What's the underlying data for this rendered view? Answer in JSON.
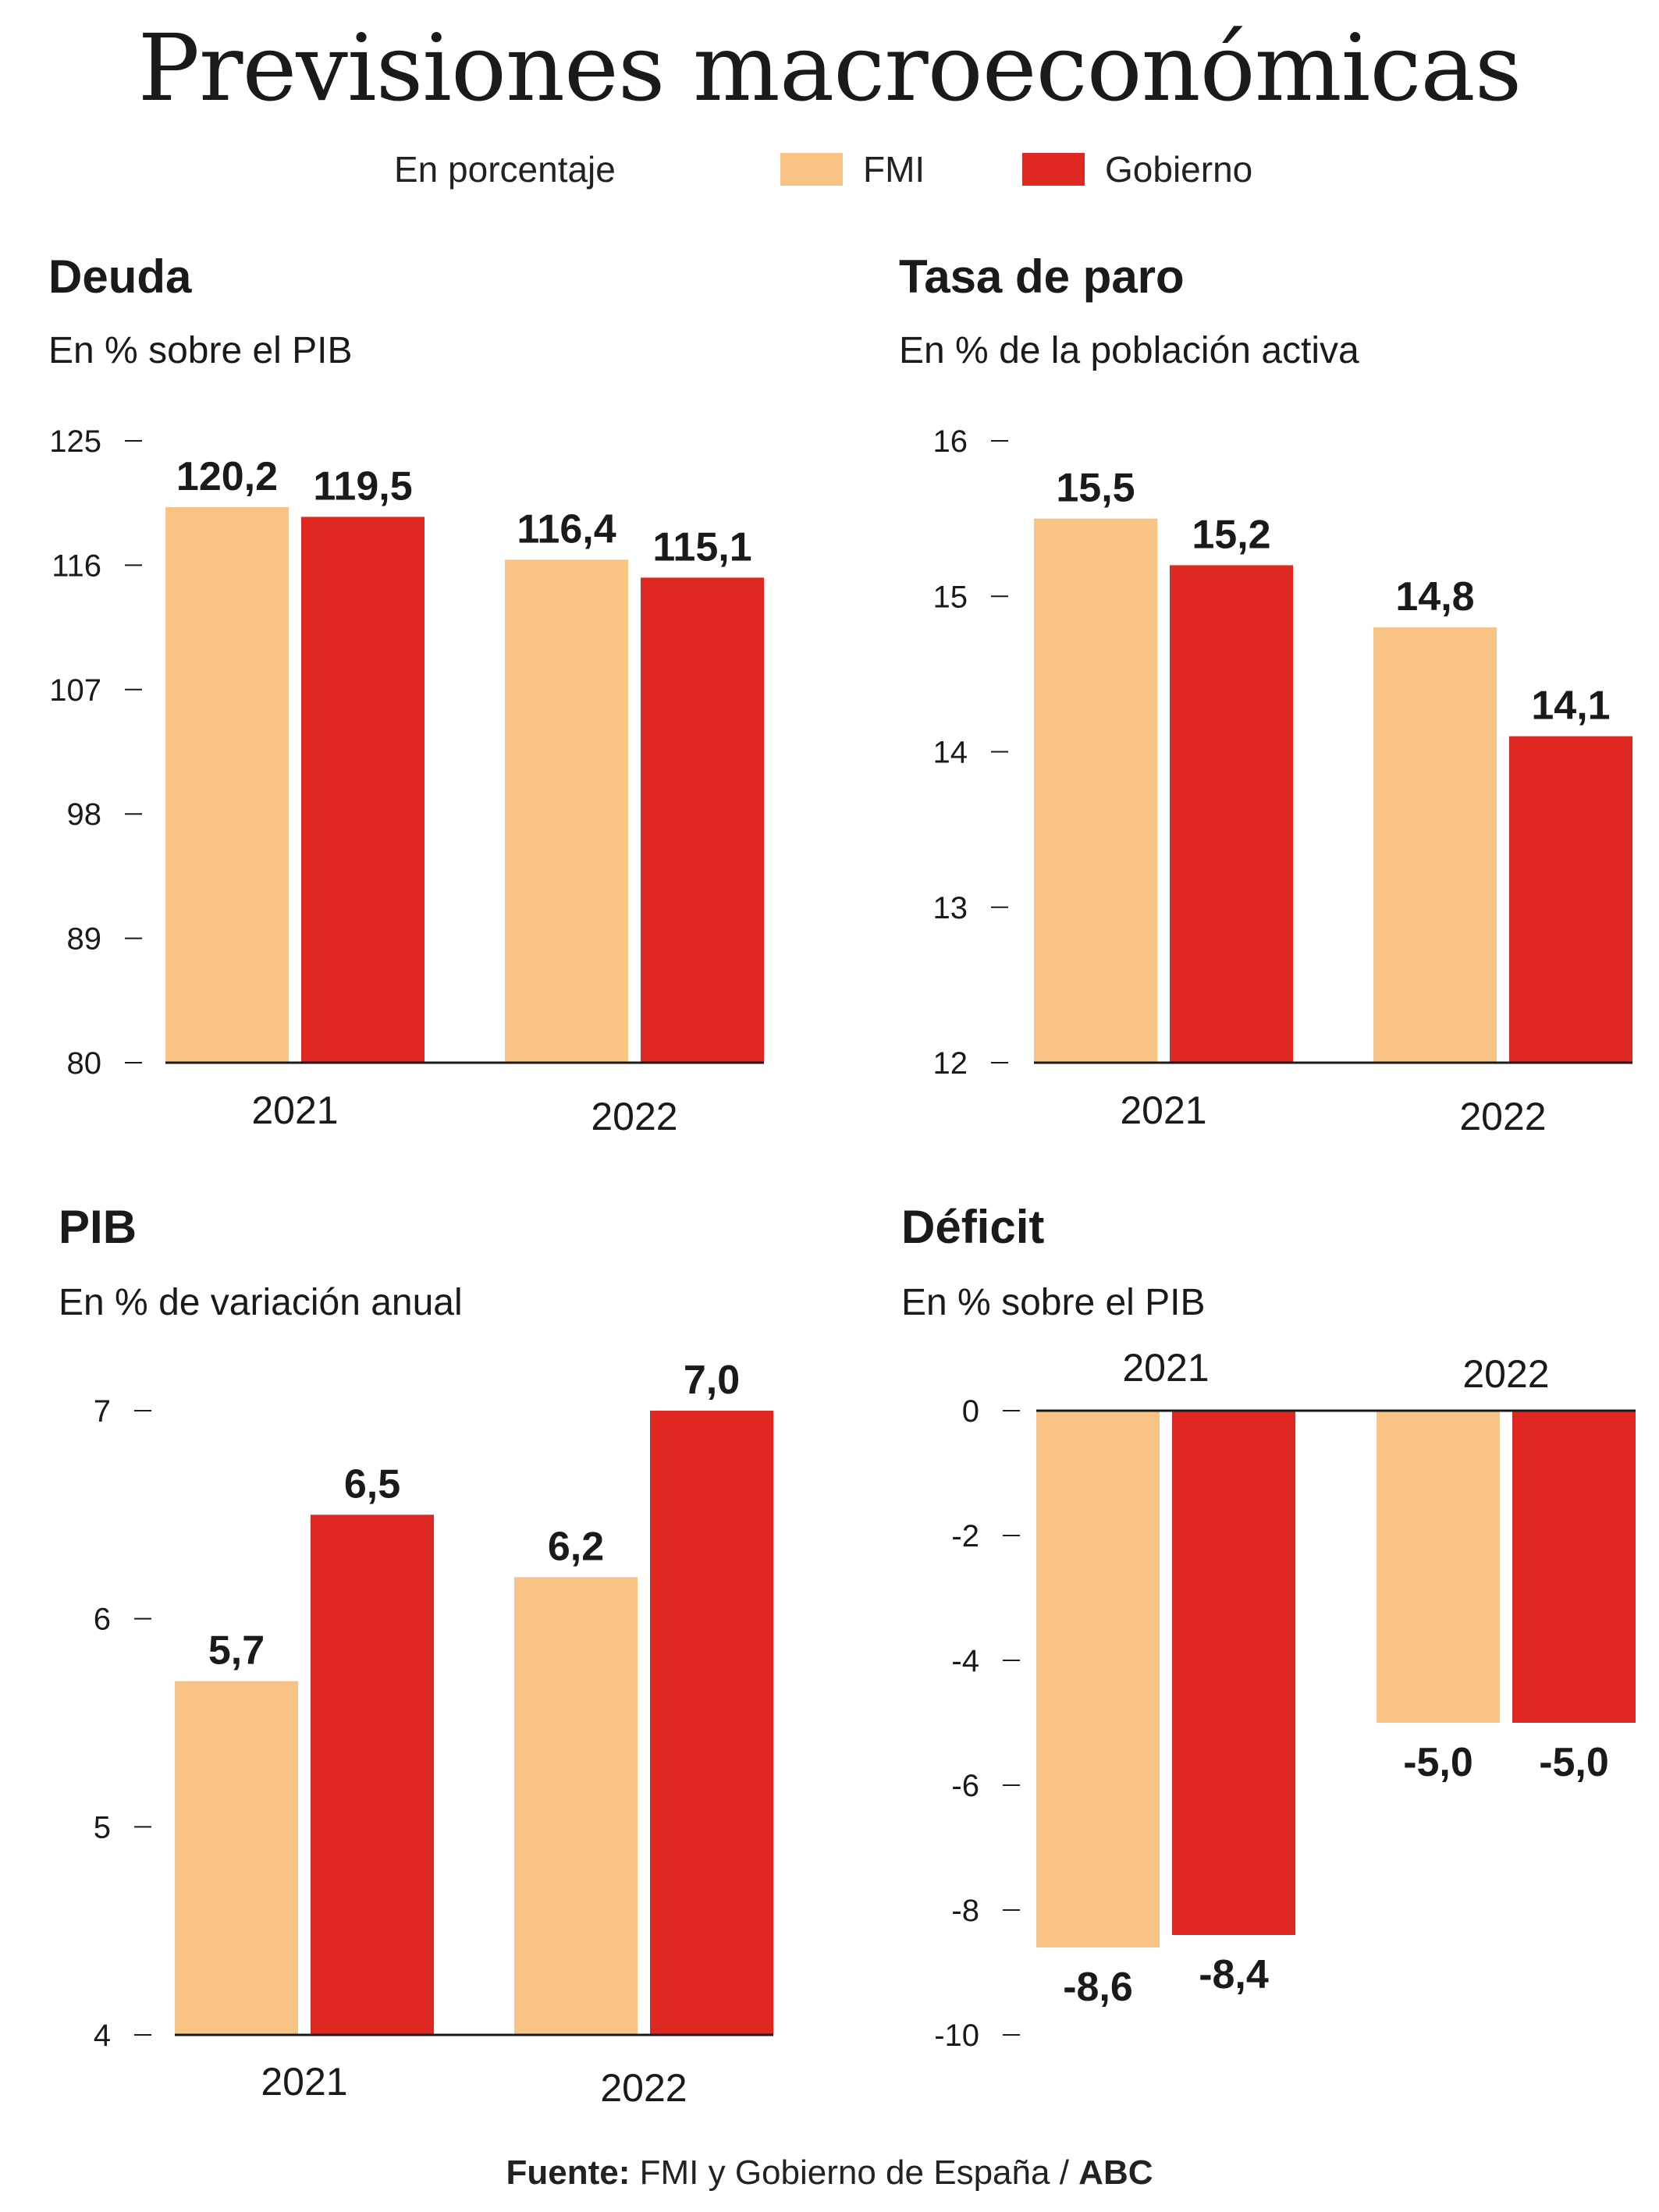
{
  "title": "Previsiones macroeconómicas",
  "legend": {
    "note": "En porcentaje",
    "items": [
      {
        "label": "FMI",
        "color": "#f8c384"
      },
      {
        "label": "Gobierno",
        "color": "#e02822"
      }
    ]
  },
  "source": {
    "label": "Fuente:",
    "text": "FMI y Gobierno de España",
    "separator": "/",
    "brand": "ABC"
  },
  "chart_data": [
    {
      "type": "bar",
      "title": "Deuda",
      "subtitle": "En % sobre el PIB",
      "categories": [
        "2021",
        "2022"
      ],
      "series": [
        {
          "name": "FMI",
          "values": [
            120.2,
            116.4
          ],
          "labels": [
            "120,2",
            "116,4"
          ]
        },
        {
          "name": "Gobierno",
          "values": [
            119.5,
            115.1
          ],
          "labels": [
            "119,5",
            "115,1"
          ]
        }
      ],
      "ylim": [
        80,
        125
      ],
      "yticks": [
        80,
        89,
        98,
        107,
        116,
        125
      ],
      "ytick_labels": [
        "80",
        "89",
        "98",
        "107",
        "116",
        "125"
      ],
      "xlabel": "",
      "ylabel": ""
    },
    {
      "type": "bar",
      "title": "Tasa de paro",
      "subtitle": "En % de la población activa",
      "categories": [
        "2021",
        "2022"
      ],
      "series": [
        {
          "name": "FMI",
          "values": [
            15.5,
            14.8
          ],
          "labels": [
            "15,5",
            "14,8"
          ]
        },
        {
          "name": "Gobierno",
          "values": [
            15.2,
            14.1
          ],
          "labels": [
            "15,2",
            "14,1"
          ]
        }
      ],
      "ylim": [
        12,
        16
      ],
      "yticks": [
        12,
        13,
        14,
        15,
        16
      ],
      "ytick_labels": [
        "12",
        "13",
        "14",
        "15",
        "16"
      ],
      "xlabel": "",
      "ylabel": ""
    },
    {
      "type": "bar",
      "title": "PIB",
      "subtitle": "En % de variación anual",
      "categories": [
        "2021",
        "2022"
      ],
      "series": [
        {
          "name": "FMI",
          "values": [
            5.7,
            6.2
          ],
          "labels": [
            "5,7",
            "6,2"
          ]
        },
        {
          "name": "Gobierno",
          "values": [
            6.5,
            7.0
          ],
          "labels": [
            "6,5",
            "7,0"
          ]
        }
      ],
      "ylim": [
        4,
        7
      ],
      "yticks": [
        4,
        5,
        6,
        7
      ],
      "ytick_labels": [
        "4",
        "5",
        "6",
        "7"
      ],
      "xlabel": "",
      "ylabel": ""
    },
    {
      "type": "bar",
      "title": "Déficit",
      "subtitle": "En % sobre el PIB",
      "categories": [
        "2021",
        "2022"
      ],
      "series": [
        {
          "name": "FMI",
          "values": [
            -8.6,
            -5.0
          ],
          "labels": [
            "-8,6",
            "-5,0"
          ]
        },
        {
          "name": "Gobierno",
          "values": [
            -8.4,
            -5.0
          ],
          "labels": [
            "-8,4",
            "-5,0"
          ]
        }
      ],
      "ylim": [
        -10,
        0
      ],
      "yticks": [
        -10,
        -8,
        -6,
        -4,
        -2,
        0
      ],
      "ytick_labels": [
        "-10",
        "-8",
        "-6",
        "-4",
        "-2",
        "0"
      ],
      "xlabel": "",
      "ylabel": ""
    }
  ]
}
